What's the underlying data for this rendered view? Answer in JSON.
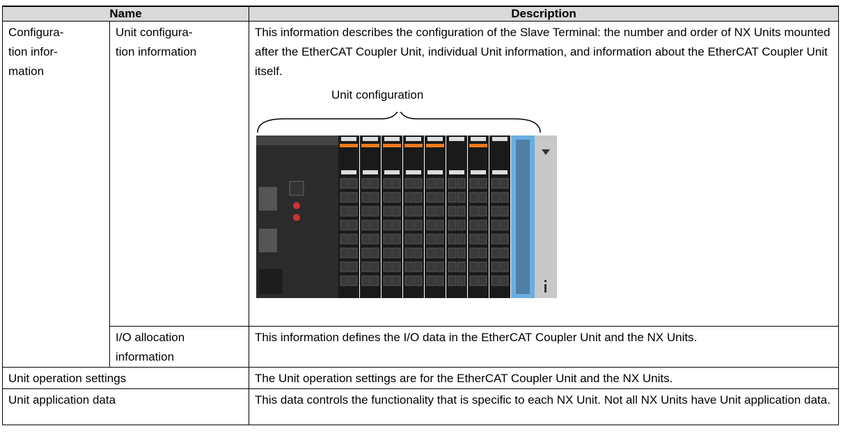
{
  "table": {
    "header": [
      "Name",
      "Description"
    ],
    "rows": [
      {
        "name_lines": [
          "Configura-",
          "tion infor-",
          "mation"
        ],
        "subname_lines": [
          "Unit configura-",
          "tion information"
        ],
        "description": "This information describes the configuration of the Slave Terminal: the number and order of NX Units mounted after the EtherCAT Coupler Unit, individual Unit information, and information about the EtherCAT Coupler Unit itself.",
        "figure_caption": "Unit configuration"
      },
      {
        "subname_lines": [
          "I/O allocation",
          "information"
        ],
        "description": "This information defines the I/O data in the EtherCAT Coupler Unit and the NX Units."
      },
      {
        "name": "Unit operation settings",
        "description": "The Unit operation settings are for the EtherCAT Coupler Unit and the NX Units."
      },
      {
        "name": "Unit application data",
        "description": "This data controls the functionality that is specific to each NX Unit. Not all NX Units have Unit application data."
      }
    ]
  }
}
